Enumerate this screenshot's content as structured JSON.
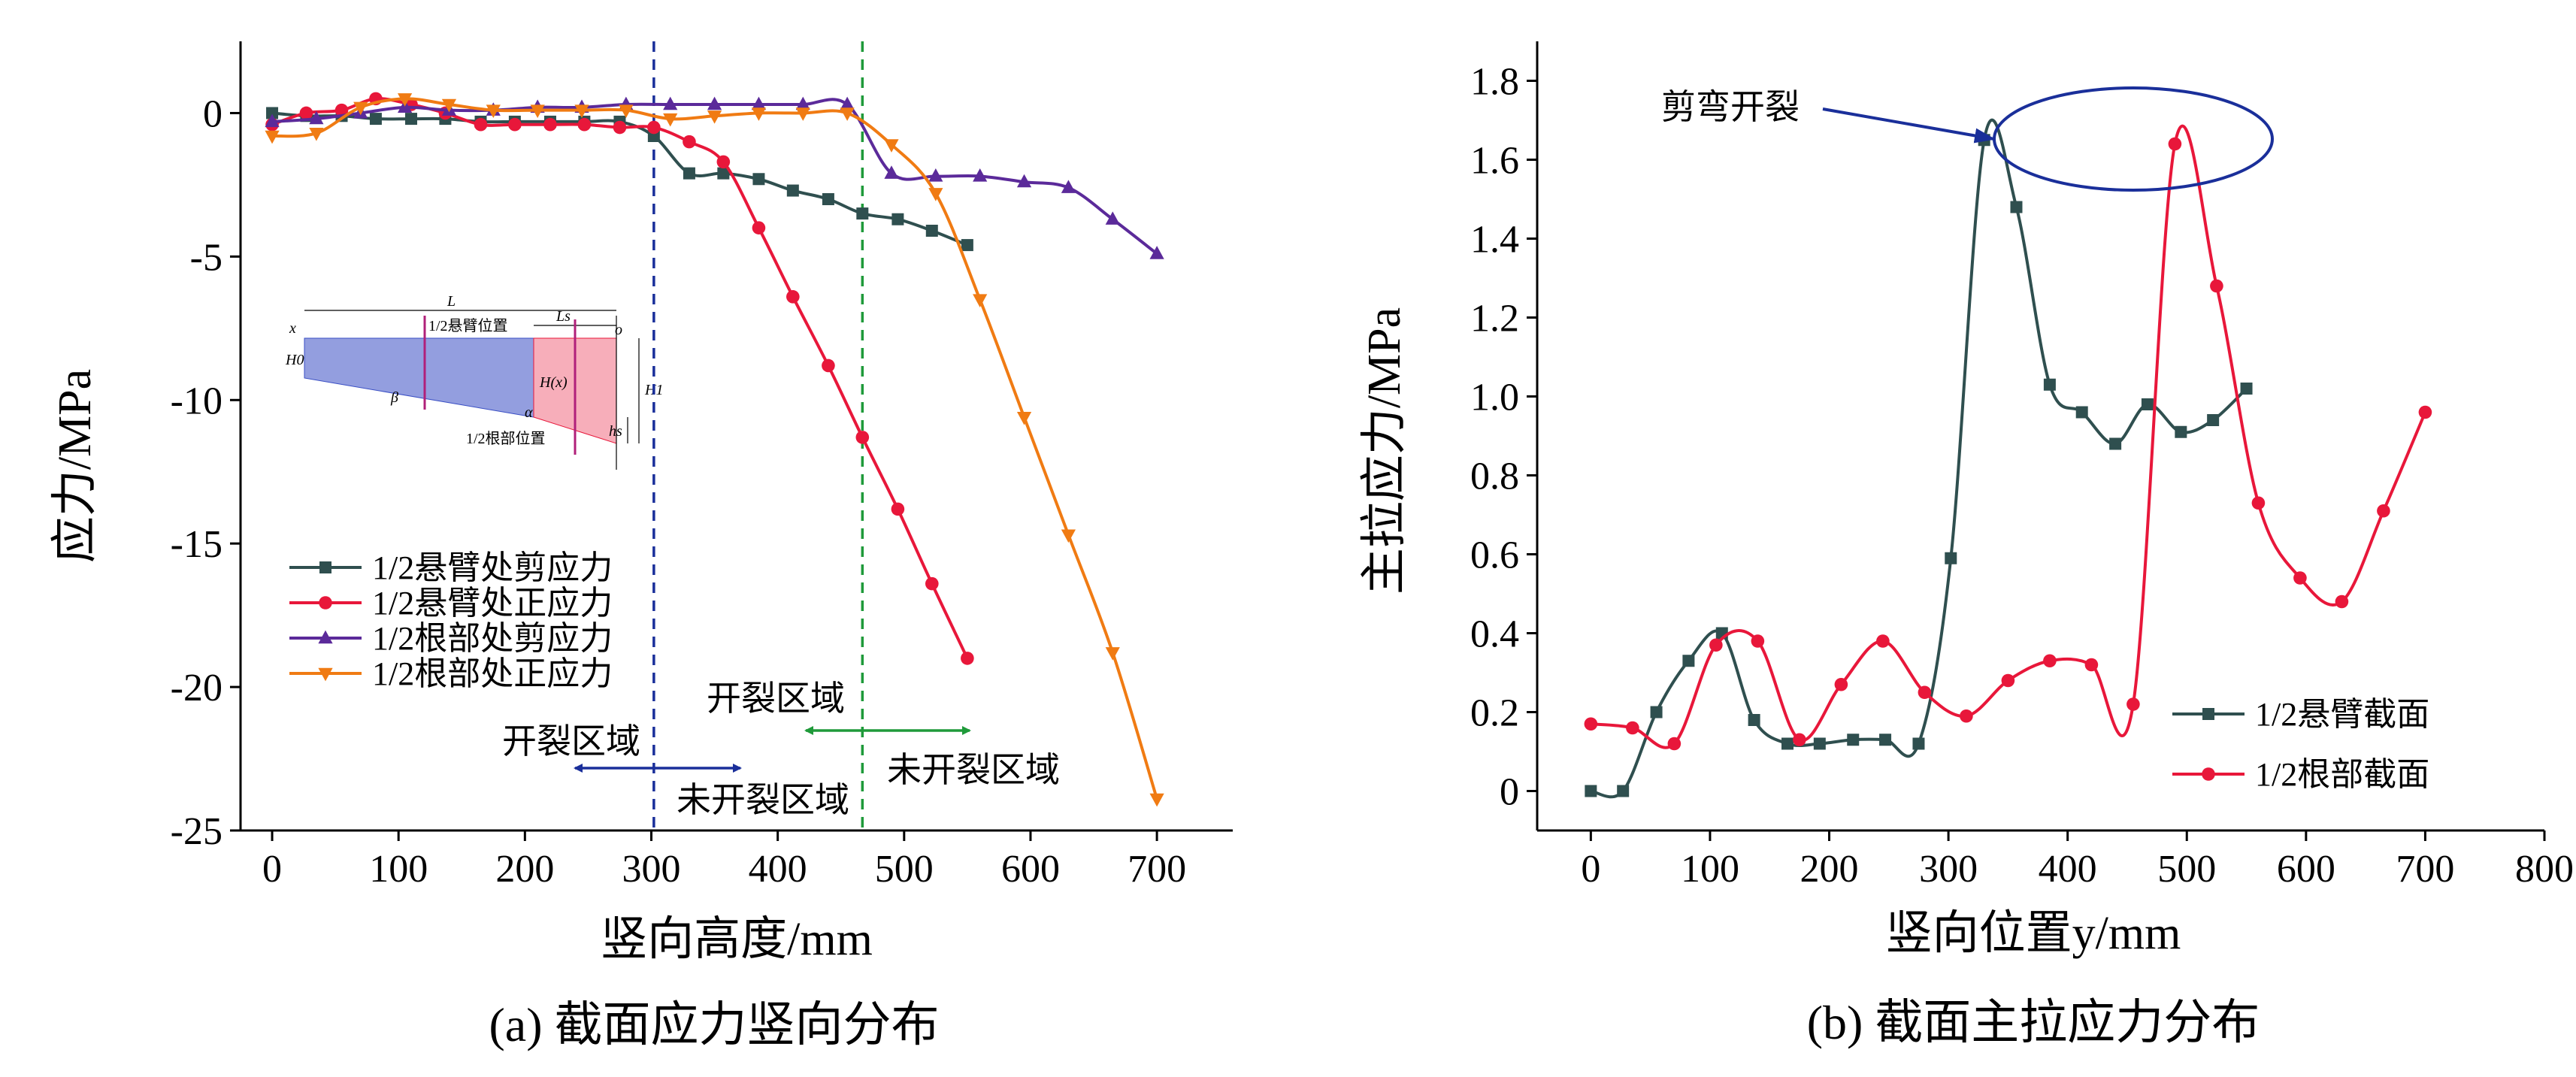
{
  "chart_data": [
    {
      "type": "line",
      "caption": "(a) 截面应力竖向分布",
      "xlabel": "竖向高度/mm",
      "ylabel": "应力/MPa",
      "xlim": [
        -25,
        760
      ],
      "ylim": [
        -25,
        2.5
      ],
      "xticks": [
        "0",
        "100",
        "200",
        "300",
        "400",
        "500",
        "600",
        "700"
      ],
      "yticks": [
        "0",
        "-5",
        "-10",
        "-15",
        "-20",
        "-25"
      ],
      "legend_position": "lower-left",
      "colors": [
        "#2f4f4f",
        "#e8173a",
        "#5b2a9a",
        "#f07b13"
      ],
      "series": [
        {
          "name": "1/2悬臂处剪应力",
          "marker": "square",
          "x": [
            0,
            27,
            55,
            82,
            110,
            137,
            165,
            192,
            220,
            247,
            275,
            302,
            330,
            357,
            385,
            412,
            440,
            467,
            495,
            522,
            550
          ],
          "y": [
            0,
            -0.1,
            -0.1,
            -0.2,
            -0.2,
            -0.2,
            -0.3,
            -0.3,
            -0.3,
            -0.3,
            -0.3,
            -0.8,
            -2.1,
            -2.1,
            -2.3,
            -2.7,
            -3.0,
            -3.5,
            -3.7,
            -4.1,
            -4.6
          ]
        },
        {
          "name": "1/2悬臂处正应力",
          "marker": "circle",
          "x": [
            0,
            27,
            55,
            82,
            110,
            137,
            165,
            192,
            220,
            247,
            275,
            302,
            330,
            357,
            385,
            412,
            440,
            467,
            495,
            522,
            550
          ],
          "y": [
            -0.4,
            0,
            0.1,
            0.5,
            0.3,
            0,
            -0.4,
            -0.4,
            -0.4,
            -0.4,
            -0.5,
            -0.5,
            -1.0,
            -1.7,
            -4.0,
            -6.4,
            -8.8,
            -11.3,
            -13.8,
            -16.4,
            -19.0
          ]
        },
        {
          "name": "1/2根部处剪应力",
          "marker": "triangle-up",
          "x": [
            0,
            35,
            70,
            105,
            140,
            175,
            210,
            245,
            280,
            315,
            350,
            385,
            420,
            455,
            490,
            525,
            560,
            595,
            630,
            665,
            700
          ],
          "y": [
            -0.3,
            -0.2,
            0,
            0.2,
            0.1,
            0.1,
            0.2,
            0.2,
            0.3,
            0.3,
            0.3,
            0.3,
            0.3,
            0.3,
            -2.1,
            -2.2,
            -2.2,
            -2.4,
            -2.6,
            -3.7,
            -4.9
          ]
        },
        {
          "name": "1/2根部处正应力",
          "marker": "triangle-down",
          "x": [
            0,
            35,
            70,
            105,
            140,
            175,
            210,
            245,
            280,
            315,
            350,
            385,
            420,
            455,
            490,
            525,
            560,
            595,
            630,
            665,
            700
          ],
          "y": [
            -0.8,
            -0.7,
            0.2,
            0.5,
            0.3,
            0.1,
            0.1,
            0.1,
            0.1,
            -0.2,
            -0.1,
            0,
            0,
            0,
            -1.1,
            -2.8,
            -6.5,
            -10.6,
            -14.7,
            -18.8,
            -23.9
          ]
        }
      ],
      "annotations": {
        "region_a_cracked": "开裂区域",
        "region_a_uncracked": "未开裂区域",
        "region_b_cracked": "开裂区域",
        "region_b_uncracked": "未开裂区域",
        "vline_blue_x": 302,
        "vline_green_x": 467
      },
      "inset_labels": {
        "x": "x",
        "L": "L",
        "Ls": "Ls",
        "o": "o",
        "cantilever": "1/2悬臂位置",
        "root": "1/2根部位置",
        "H0": "H0",
        "beta": "β",
        "alpha": "α",
        "Hx": "H(x)",
        "H1": "H1",
        "hs": "hs"
      }
    },
    {
      "type": "line",
      "caption": "(b) 截面主拉应力分布",
      "xlabel": "竖向位置y/mm",
      "ylabel": "主拉应力/MPa",
      "xlim": [
        -45,
        800
      ],
      "ylim": [
        -0.1,
        1.9
      ],
      "xticks": [
        "0",
        "100",
        "200",
        "300",
        "400",
        "500",
        "600",
        "700",
        "800"
      ],
      "yticks": [
        "0",
        "0.2",
        "0.4",
        "0.6",
        "0.8",
        "1.0",
        "1.2",
        "1.4",
        "1.6",
        "1.8"
      ],
      "legend_position": "lower-right",
      "colors": [
        "#2f4f4f",
        "#e8173a",
        "#1a2f9a"
      ],
      "series": [
        {
          "name": "1/2悬臂截面",
          "marker": "square",
          "x": [
            0,
            27,
            55,
            82,
            110,
            137,
            165,
            192,
            220,
            247,
            275,
            302,
            330,
            357,
            385,
            412,
            440,
            467,
            495,
            522,
            550
          ],
          "y": [
            0,
            0,
            0.2,
            0.33,
            0.4,
            0.18,
            0.12,
            0.12,
            0.13,
            0.13,
            0.12,
            0.59,
            1.65,
            1.48,
            1.03,
            0.96,
            0.88,
            0.98,
            0.91,
            0.94,
            1.02
          ]
        },
        {
          "name": "1/2根部截面",
          "marker": "circle",
          "x": [
            0,
            35,
            70,
            105,
            140,
            175,
            210,
            245,
            280,
            315,
            350,
            385,
            420,
            455,
            490,
            525,
            560,
            595,
            630,
            665,
            700
          ],
          "y": [
            0.17,
            0.16,
            0.12,
            0.37,
            0.38,
            0.13,
            0.27,
            0.38,
            0.25,
            0.19,
            0.28,
            0.33,
            0.32,
            0.22,
            1.64,
            1.28,
            0.73,
            0.54,
            0.48,
            0.71,
            0.96
          ]
        }
      ],
      "annotations": {
        "shear_crack": "剪弯开裂"
      }
    }
  ]
}
